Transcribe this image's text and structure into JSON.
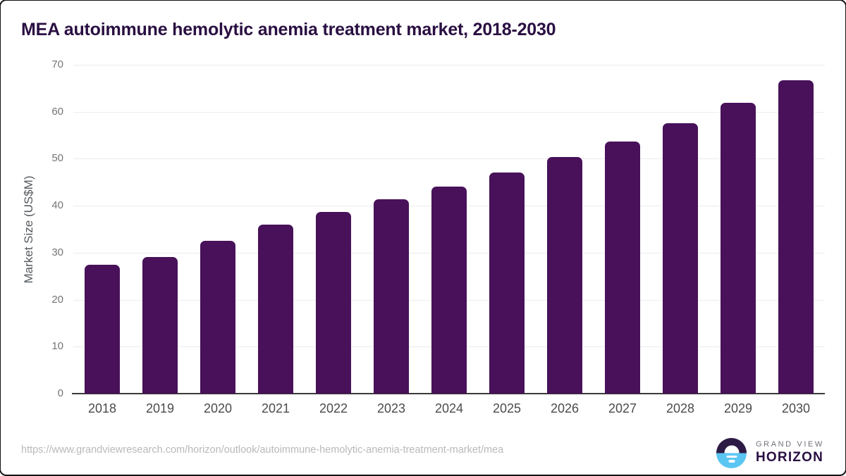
{
  "title": "MEA autoimmune hemolytic anemia treatment market, 2018-2030",
  "chart_data": {
    "type": "bar",
    "title": "MEA autoimmune hemolytic anemia treatment market, 2018-2030",
    "xlabel": "",
    "ylabel": "Market Size (US$M)",
    "categories": [
      "2018",
      "2019",
      "2020",
      "2021",
      "2022",
      "2023",
      "2024",
      "2025",
      "2026",
      "2027",
      "2028",
      "2029",
      "2030"
    ],
    "values": [
      27.4,
      29.1,
      32.6,
      36.0,
      38.7,
      41.4,
      44.1,
      47.0,
      50.3,
      53.7,
      57.5,
      61.9,
      66.7
    ],
    "ylim": [
      0,
      70
    ],
    "yticks": [
      0,
      10,
      20,
      30,
      40,
      50,
      60,
      70
    ],
    "grid": true,
    "legend": false
  },
  "footer": {
    "source_url": "https://www.grandviewresearch.com/horizon/outlook/autoimmune-hemolytic-anemia-treatment-market/mea",
    "logo": {
      "icon": "sunrise-horizon-icon",
      "top_text": "GRAND VIEW",
      "bottom_text": "HORIZON"
    }
  },
  "colors": {
    "bar": "#481159",
    "title_text": "#2a0f42",
    "axis_line": "#3a3a3a",
    "gridline": "#ececec",
    "tick_label": "#757575",
    "x_label": "#4b4b4b",
    "url_text": "#b9b9b9",
    "logo_blue": "#5bc6f2",
    "logo_dark": "#2d1a45"
  }
}
